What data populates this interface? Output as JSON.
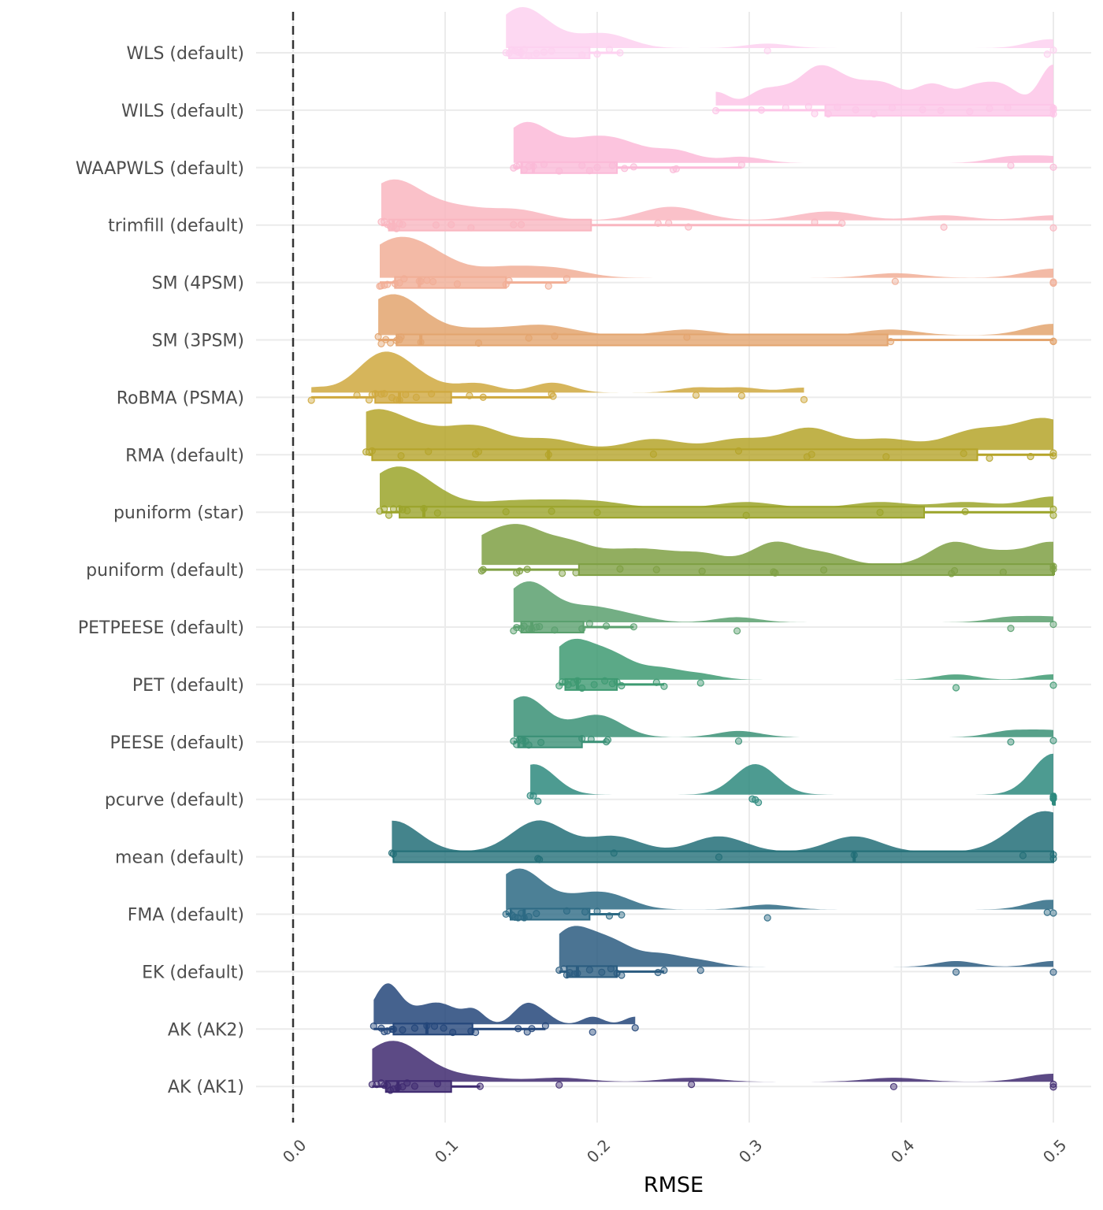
{
  "chart_data": {
    "type": "raincloud",
    "title": "",
    "xlabel": "RMSE",
    "ylabel": "",
    "xlim": [
      0.0,
      0.5
    ],
    "x_ticks": [
      "0.0",
      "0.1",
      "0.2",
      "0.3",
      "0.4",
      "0.5"
    ],
    "reference_line": {
      "x": 0.0,
      "style": "dashed"
    },
    "grid": true,
    "legend": "none",
    "categories": [
      "WLS (default)",
      "WILS (default)",
      "WAAPWLS (default)",
      "trimfill (default)",
      "SM (4PSM)",
      "SM (3PSM)",
      "RoBMA (PSMA)",
      "RMA (default)",
      "puniform (star)",
      "puniform (default)",
      "PETPEESE (default)",
      "PET (default)",
      "PEESE (default)",
      "pcurve (default)",
      "mean (default)",
      "FMA (default)",
      "EK (default)",
      "AK (AK2)",
      "AK (AK1)"
    ],
    "series": [
      {
        "name": "WLS (default)",
        "color": "#FDD1F0",
        "box": {
          "min": 0.14,
          "q1": 0.142,
          "median": 0.15,
          "q3": 0.195,
          "max": 0.215
        },
        "points": [
          0.14,
          0.142,
          0.144,
          0.146,
          0.148,
          0.15,
          0.152,
          0.155,
          0.16,
          0.165,
          0.17,
          0.19,
          0.2,
          0.208,
          0.215,
          0.312,
          0.496,
          0.5
        ]
      },
      {
        "name": "WILS (default)",
        "color": "#FDC6E8",
        "box": {
          "min": 0.278,
          "q1": 0.35,
          "median": 0.5,
          "q3": 0.5,
          "max": 0.5
        },
        "points": [
          0.278,
          0.308,
          0.324,
          0.339,
          0.343,
          0.352,
          0.358,
          0.37,
          0.382,
          0.394,
          0.414,
          0.426,
          0.445,
          0.458,
          0.47,
          0.5,
          0.5,
          0.5
        ]
      },
      {
        "name": "WAAPWLS (default)",
        "color": "#FBBAD8",
        "box": {
          "min": 0.145,
          "q1": 0.15,
          "median": 0.158,
          "q3": 0.213,
          "max": 0.295
        },
        "points": [
          0.145,
          0.147,
          0.149,
          0.152,
          0.155,
          0.158,
          0.165,
          0.175,
          0.19,
          0.195,
          0.2,
          0.21,
          0.218,
          0.224,
          0.25,
          0.252,
          0.295,
          0.472,
          0.5
        ]
      },
      {
        "name": "trimfill (default)",
        "color": "#F9B6C0",
        "box": {
          "min": 0.058,
          "q1": 0.063,
          "median": 0.066,
          "q3": 0.196,
          "max": 0.361
        },
        "points": [
          0.058,
          0.06,
          0.062,
          0.064,
          0.066,
          0.068,
          0.07,
          0.072,
          0.094,
          0.104,
          0.117,
          0.145,
          0.15,
          0.24,
          0.247,
          0.26,
          0.343,
          0.361,
          0.428,
          0.5
        ]
      },
      {
        "name": "SM (4PSM)",
        "color": "#F1AE96",
        "box": {
          "min": 0.057,
          "q1": 0.067,
          "median": 0.083,
          "q3": 0.14,
          "max": 0.18
        },
        "points": [
          0.057,
          0.058,
          0.06,
          0.062,
          0.067,
          0.07,
          0.073,
          0.083,
          0.084,
          0.088,
          0.092,
          0.108,
          0.14,
          0.142,
          0.168,
          0.18,
          0.396,
          0.5,
          0.5
        ]
      },
      {
        "name": "SM (3PSM)",
        "color": "#E3A56F",
        "box": {
          "min": 0.056,
          "q1": 0.068,
          "median": 0.084,
          "q3": 0.391,
          "max": 0.5
        },
        "points": [
          0.056,
          0.058,
          0.061,
          0.064,
          0.068,
          0.07,
          0.071,
          0.084,
          0.122,
          0.155,
          0.172,
          0.259,
          0.393,
          0.5,
          0.5
        ]
      },
      {
        "name": "RoBMA (PSMA)",
        "color": "#CFA83E",
        "box": {
          "min": 0.012,
          "q1": 0.054,
          "median": 0.07,
          "q3": 0.104,
          "max": 0.17
        },
        "points": [
          0.012,
          0.042,
          0.05,
          0.052,
          0.054,
          0.058,
          0.06,
          0.065,
          0.068,
          0.07,
          0.074,
          0.081,
          0.091,
          0.116,
          0.125,
          0.17,
          0.171,
          0.265,
          0.295,
          0.336
        ]
      },
      {
        "name": "RMA (default)",
        "color": "#B5A42A",
        "box": {
          "min": 0.05,
          "q1": 0.052,
          "median": 0.168,
          "q3": 0.45,
          "max": 0.5
        },
        "points": [
          0.048,
          0.05,
          0.052,
          0.071,
          0.089,
          0.12,
          0.122,
          0.168,
          0.237,
          0.293,
          0.338,
          0.341,
          0.39,
          0.441,
          0.458,
          0.485,
          0.5,
          0.5
        ]
      },
      {
        "name": "puniform (star)",
        "color": "#9BA42A",
        "box": {
          "min": 0.058,
          "q1": 0.07,
          "median": 0.086,
          "q3": 0.415,
          "max": 0.5
        },
        "points": [
          0.057,
          0.06,
          0.063,
          0.066,
          0.07,
          0.072,
          0.075,
          0.086,
          0.095,
          0.14,
          0.17,
          0.2,
          0.298,
          0.386,
          0.442,
          0.5,
          0.5
        ]
      },
      {
        "name": "puniform (default)",
        "color": "#7FA044",
        "box": {
          "min": 0.124,
          "q1": 0.188,
          "median": 0.5,
          "q3": 0.5,
          "max": 0.5
        },
        "points": [
          0.124,
          0.125,
          0.147,
          0.149,
          0.154,
          0.177,
          0.186,
          0.215,
          0.239,
          0.269,
          0.316,
          0.317,
          0.349,
          0.433,
          0.435,
          0.467,
          0.5,
          0.5
        ]
      },
      {
        "name": "PETPEESE (default)",
        "color": "#5AA06E",
        "box": {
          "min": 0.145,
          "q1": 0.15,
          "median": 0.157,
          "q3": 0.191,
          "max": 0.224
        },
        "points": [
          0.145,
          0.147,
          0.15,
          0.152,
          0.155,
          0.157,
          0.16,
          0.162,
          0.172,
          0.19,
          0.195,
          0.206,
          0.224,
          0.292,
          0.472,
          0.5
        ]
      },
      {
        "name": "PET (default)",
        "color": "#3E9A72",
        "box": {
          "min": 0.175,
          "q1": 0.179,
          "median": 0.187,
          "q3": 0.213,
          "max": 0.244
        },
        "points": [
          0.175,
          0.177,
          0.179,
          0.181,
          0.184,
          0.187,
          0.19,
          0.198,
          0.205,
          0.21,
          0.213,
          0.216,
          0.239,
          0.244,
          0.268,
          0.436,
          0.5
        ]
      },
      {
        "name": "PEESE (default)",
        "color": "#3A9076",
        "box": {
          "min": 0.145,
          "q1": 0.148,
          "median": 0.152,
          "q3": 0.19,
          "max": 0.206
        },
        "points": [
          0.145,
          0.147,
          0.149,
          0.151,
          0.153,
          0.155,
          0.163,
          0.19,
          0.196,
          0.206,
          0.207,
          0.293,
          0.472,
          0.5
        ]
      },
      {
        "name": "pcurve (default)",
        "color": "#2E8A7E",
        "box": {
          "min": 0.5,
          "q1": 0.5,
          "median": 0.5,
          "q3": 0.5,
          "max": 0.5
        },
        "points": [
          0.156,
          0.158,
          0.161,
          0.302,
          0.304,
          0.306,
          0.5,
          0.5,
          0.5,
          0.5
        ]
      },
      {
        "name": "mean (default)",
        "color": "#236F78",
        "box": {
          "min": 0.065,
          "q1": 0.066,
          "median": 0.369,
          "q3": 0.5,
          "max": 0.5
        },
        "points": [
          0.065,
          0.066,
          0.161,
          0.162,
          0.211,
          0.28,
          0.369,
          0.48,
          0.5,
          0.5
        ]
      },
      {
        "name": "FMA (default)",
        "color": "#2D6A84",
        "box": {
          "min": 0.14,
          "q1": 0.143,
          "median": 0.152,
          "q3": 0.195,
          "max": 0.215
        },
        "points": [
          0.14,
          0.142,
          0.144,
          0.146,
          0.148,
          0.15,
          0.152,
          0.155,
          0.16,
          0.18,
          0.192,
          0.2,
          0.208,
          0.216,
          0.312,
          0.496,
          0.5
        ]
      },
      {
        "name": "EK (default)",
        "color": "#2B5C80",
        "box": {
          "min": 0.175,
          "q1": 0.18,
          "median": 0.187,
          "q3": 0.213,
          "max": 0.244
        },
        "points": [
          0.175,
          0.178,
          0.18,
          0.182,
          0.185,
          0.187,
          0.195,
          0.203,
          0.209,
          0.213,
          0.216,
          0.24,
          0.244,
          0.268,
          0.436,
          0.5
        ]
      },
      {
        "name": "AK (AK2)",
        "color": "#24467A",
        "box": {
          "min": 0.053,
          "q1": 0.066,
          "median": 0.088,
          "q3": 0.118,
          "max": 0.166
        },
        "points": [
          0.053,
          0.058,
          0.06,
          0.062,
          0.065,
          0.066,
          0.072,
          0.08,
          0.088,
          0.093,
          0.099,
          0.105,
          0.117,
          0.12,
          0.148,
          0.154,
          0.157,
          0.166,
          0.197,
          0.225
        ]
      },
      {
        "name": "AK (AK1)",
        "color": "#3F2A70",
        "box": {
          "min": 0.052,
          "q1": 0.061,
          "median": 0.069,
          "q3": 0.104,
          "max": 0.123
        },
        "points": [
          0.052,
          0.055,
          0.058,
          0.06,
          0.062,
          0.064,
          0.066,
          0.069,
          0.072,
          0.075,
          0.08,
          0.095,
          0.123,
          0.175,
          0.262,
          0.395,
          0.5,
          0.5
        ]
      }
    ]
  }
}
